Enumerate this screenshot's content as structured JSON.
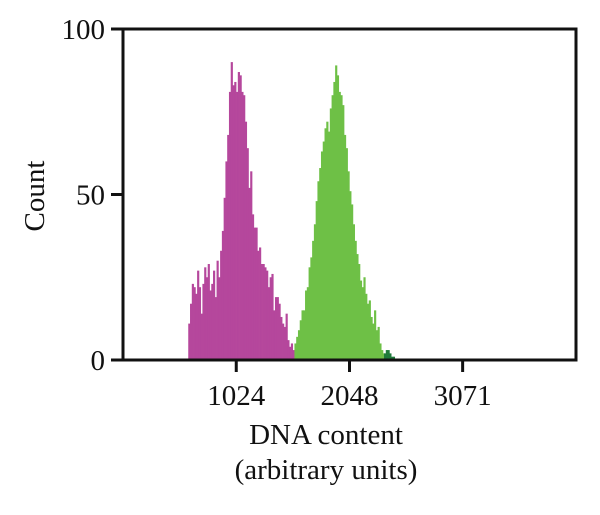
{
  "chart_data": {
    "type": "bar",
    "title": "",
    "xlabel": "DNA content",
    "xlabel_line2": "(arbitrary units)",
    "ylabel": "Count",
    "xlim": [
      0,
      4096
    ],
    "ylim": [
      0,
      100
    ],
    "x_ticks": [
      {
        "value": 1024,
        "label": "1024"
      },
      {
        "value": 2048,
        "label": "2048"
      },
      {
        "value": 3071,
        "label": "3071"
      }
    ],
    "y_ticks": [
      {
        "value": 0,
        "label": "0"
      },
      {
        "value": 50,
        "label": "50"
      },
      {
        "value": 100,
        "label": "100"
      }
    ],
    "grid": false,
    "series": [
      {
        "color": "#b5479c",
        "bin_width": 16,
        "x_start": 590,
        "values": [
          11,
          17,
          23,
          22,
          20,
          27,
          22,
          14,
          23,
          28,
          25,
          29,
          21,
          23,
          27,
          19,
          30,
          25,
          33,
          39,
          49,
          60,
          68,
          81,
          90,
          83,
          84,
          81,
          87,
          86,
          81,
          80,
          72,
          64,
          52,
          57,
          44,
          40,
          40,
          33,
          34,
          29,
          29,
          28,
          27,
          22,
          25,
          26,
          15,
          19,
          19,
          17,
          13,
          11,
          10,
          14,
          6,
          4,
          5,
          3
        ]
      },
      {
        "color": "#6ec046",
        "bin_width": 16,
        "x_start": 1550,
        "values": [
          5,
          7,
          9,
          12,
          15,
          15,
          21,
          22,
          28,
          31,
          36,
          41,
          48,
          54,
          58,
          63,
          66,
          70,
          72,
          69,
          76,
          80,
          84,
          89,
          86,
          81,
          80,
          77,
          68,
          64,
          57,
          51,
          47,
          41,
          36,
          32,
          29,
          24,
          22,
          25,
          20,
          17,
          18,
          13,
          11,
          15,
          9,
          10,
          5,
          3,
          2,
          1,
          1,
          0,
          0
        ]
      },
      {
        "color": "#1f7a3a",
        "bin_width": 16,
        "x_start": 2360,
        "values": [
          2,
          3,
          3,
          2,
          1,
          1
        ]
      }
    ]
  }
}
